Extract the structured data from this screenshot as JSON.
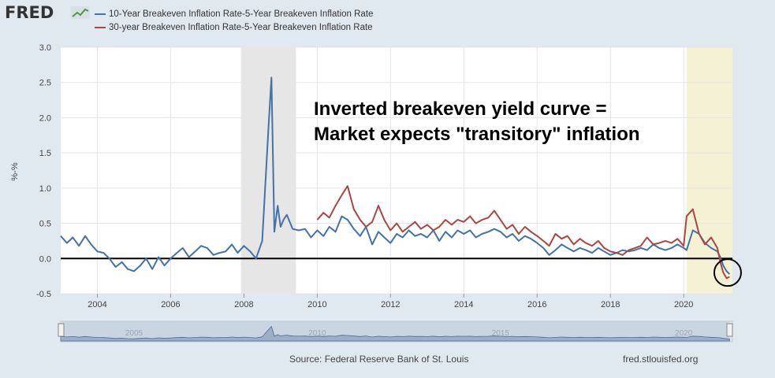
{
  "header": {
    "brand": "FRED",
    "brand_icon": "chart-line-icon"
  },
  "legend": {
    "items": [
      {
        "label": "10-Year Breakeven Inflation Rate-5-Year Breakeven Inflation Rate",
        "color": "#4572a7"
      },
      {
        "label": "30-year Breakeven Inflation Rate-5-Year Breakeven Inflation Rate",
        "color": "#aa4643"
      }
    ]
  },
  "annotation": {
    "line1": "Inverted breakeven yield curve =",
    "line2": "Market expects \"transitory\" inflation"
  },
  "footer": {
    "source": "Source: Federal Reserve Bank of St. Louis",
    "url": "fred.stlouisfed.org"
  },
  "chart_data": {
    "type": "line",
    "ylabel": "%-%",
    "ylim": [
      -0.5,
      3.0
    ],
    "yticks": [
      -0.5,
      0.0,
      0.5,
      1.0,
      1.5,
      2.0,
      2.5,
      3.0
    ],
    "xlim": [
      2003.0,
      2021.33
    ],
    "xticks": [
      2004,
      2006,
      2008,
      2010,
      2012,
      2014,
      2016,
      2018,
      2020
    ],
    "navigator_ticks": [
      2005,
      2010,
      2015,
      2020
    ],
    "grid": true,
    "legend_position": "top-left",
    "recessions": [
      [
        2007.92,
        2009.42
      ],
      [
        2020.08,
        2020.33
      ]
    ],
    "highlight_region": [
      2020.08,
      2021.33
    ],
    "zero_line": true,
    "circle_marker": {
      "x": 2021.2,
      "y": -0.2
    },
    "series": [
      {
        "name": "10-Year Breakeven Inflation Rate-5-Year Breakeven Inflation Rate",
        "color": "#4572a7",
        "x": [
          2003.0,
          2003.17,
          2003.33,
          2003.5,
          2003.67,
          2003.83,
          2004.0,
          2004.17,
          2004.33,
          2004.5,
          2004.67,
          2004.83,
          2005.0,
          2005.17,
          2005.33,
          2005.5,
          2005.67,
          2005.83,
          2006.0,
          2006.17,
          2006.33,
          2006.5,
          2006.67,
          2006.83,
          2007.0,
          2007.17,
          2007.33,
          2007.5,
          2007.67,
          2007.83,
          2008.0,
          2008.17,
          2008.33,
          2008.5,
          2008.67,
          2008.75,
          2008.83,
          2008.92,
          2009.0,
          2009.08,
          2009.17,
          2009.33,
          2009.5,
          2009.67,
          2009.83,
          2010.0,
          2010.17,
          2010.33,
          2010.5,
          2010.67,
          2010.83,
          2011.0,
          2011.17,
          2011.33,
          2011.5,
          2011.67,
          2011.83,
          2012.0,
          2012.17,
          2012.33,
          2012.5,
          2012.67,
          2012.83,
          2013.0,
          2013.17,
          2013.33,
          2013.5,
          2013.67,
          2013.83,
          2014.0,
          2014.17,
          2014.33,
          2014.5,
          2014.67,
          2014.83,
          2015.0,
          2015.17,
          2015.33,
          2015.5,
          2015.67,
          2015.83,
          2016.0,
          2016.17,
          2016.33,
          2016.5,
          2016.67,
          2016.83,
          2017.0,
          2017.17,
          2017.33,
          2017.5,
          2017.67,
          2017.83,
          2018.0,
          2018.17,
          2018.33,
          2018.5,
          2018.67,
          2018.83,
          2019.0,
          2019.17,
          2019.33,
          2019.5,
          2019.67,
          2019.83,
          2020.0,
          2020.08,
          2020.25,
          2020.42,
          2020.58,
          2020.75,
          2020.92,
          2021.0,
          2021.08,
          2021.17,
          2021.25
        ],
        "values": [
          0.32,
          0.22,
          0.3,
          0.18,
          0.32,
          0.2,
          0.1,
          0.08,
          0.0,
          -0.12,
          -0.05,
          -0.15,
          -0.18,
          -0.1,
          0.0,
          -0.15,
          0.02,
          -0.1,
          0.0,
          0.08,
          0.15,
          0.02,
          0.1,
          0.18,
          0.15,
          0.05,
          0.08,
          0.1,
          0.2,
          0.08,
          0.18,
          0.1,
          0.0,
          0.25,
          1.85,
          2.57,
          0.38,
          0.75,
          0.45,
          0.55,
          0.62,
          0.42,
          0.4,
          0.42,
          0.3,
          0.4,
          0.32,
          0.45,
          0.38,
          0.6,
          0.55,
          0.42,
          0.32,
          0.45,
          0.2,
          0.38,
          0.3,
          0.22,
          0.35,
          0.3,
          0.4,
          0.32,
          0.35,
          0.3,
          0.4,
          0.25,
          0.38,
          0.3,
          0.4,
          0.35,
          0.4,
          0.3,
          0.35,
          0.38,
          0.42,
          0.38,
          0.3,
          0.35,
          0.25,
          0.32,
          0.28,
          0.22,
          0.15,
          0.05,
          0.12,
          0.2,
          0.15,
          0.1,
          0.15,
          0.12,
          0.08,
          0.15,
          0.1,
          0.05,
          0.08,
          0.12,
          0.1,
          0.12,
          0.15,
          0.12,
          0.2,
          0.15,
          0.12,
          0.15,
          0.2,
          0.15,
          0.12,
          0.4,
          0.35,
          0.22,
          0.15,
          0.1,
          0.02,
          -0.1,
          -0.18,
          -0.22
        ]
      },
      {
        "name": "30-year Breakeven Inflation Rate-5-Year Breakeven Inflation Rate",
        "color": "#aa4643",
        "x": [
          2010.0,
          2010.17,
          2010.33,
          2010.5,
          2010.67,
          2010.83,
          2011.0,
          2011.17,
          2011.33,
          2011.5,
          2011.67,
          2011.83,
          2012.0,
          2012.17,
          2012.33,
          2012.5,
          2012.67,
          2012.83,
          2013.0,
          2013.17,
          2013.33,
          2013.5,
          2013.67,
          2013.83,
          2014.0,
          2014.17,
          2014.33,
          2014.5,
          2014.67,
          2014.83,
          2015.0,
          2015.17,
          2015.33,
          2015.5,
          2015.67,
          2015.83,
          2016.0,
          2016.17,
          2016.33,
          2016.5,
          2016.67,
          2016.83,
          2017.0,
          2017.17,
          2017.33,
          2017.5,
          2017.67,
          2017.83,
          2018.0,
          2018.17,
          2018.33,
          2018.5,
          2018.67,
          2018.83,
          2019.0,
          2019.17,
          2019.33,
          2019.5,
          2019.67,
          2019.83,
          2020.0,
          2020.08,
          2020.25,
          2020.42,
          2020.58,
          2020.75,
          2020.92,
          2021.0,
          2021.08,
          2021.17,
          2021.25
        ],
        "values": [
          0.55,
          0.65,
          0.58,
          0.75,
          0.9,
          1.03,
          0.7,
          0.55,
          0.45,
          0.52,
          0.75,
          0.55,
          0.4,
          0.5,
          0.38,
          0.45,
          0.52,
          0.42,
          0.48,
          0.4,
          0.45,
          0.55,
          0.48,
          0.55,
          0.52,
          0.6,
          0.5,
          0.55,
          0.58,
          0.68,
          0.55,
          0.42,
          0.48,
          0.35,
          0.45,
          0.38,
          0.32,
          0.25,
          0.18,
          0.35,
          0.28,
          0.32,
          0.2,
          0.28,
          0.22,
          0.18,
          0.25,
          0.15,
          0.1,
          0.08,
          0.05,
          0.12,
          0.15,
          0.18,
          0.3,
          0.2,
          0.22,
          0.25,
          0.22,
          0.28,
          0.18,
          0.6,
          0.7,
          0.35,
          0.2,
          0.3,
          0.15,
          -0.05,
          -0.2,
          -0.28,
          -0.26
        ]
      }
    ]
  }
}
